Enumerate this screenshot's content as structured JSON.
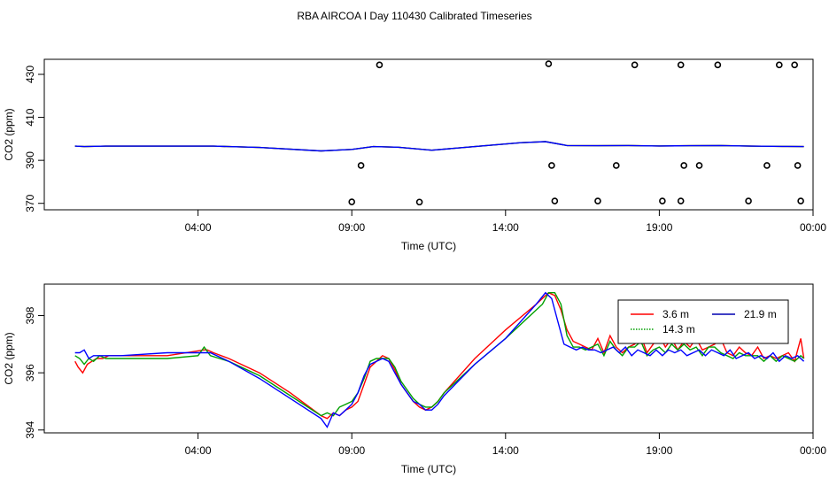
{
  "title": "RBA AIRCOA I  Day 110430  Calibrated Timeseries",
  "chart_data": [
    {
      "type": "scatter",
      "xlabel": "Time (UTC)",
      "ylabel": "CO2 (ppm)",
      "xlim": [
        -1.0,
        24.0
      ],
      "ylim": [
        367.0,
        437.0
      ],
      "xticks": [
        4,
        9,
        14,
        19,
        24
      ],
      "xticklabels": [
        "04:00",
        "09:00",
        "14:00",
        "19:00",
        "00:00"
      ],
      "yticks": [
        370,
        390,
        410,
        430
      ],
      "yticklabels": [
        "370",
        "390",
        "410",
        "430"
      ],
      "grid": false,
      "series": [
        {
          "color": "#ff0000",
          "style": "line",
          "x": [
            0.0,
            0.3,
            1.0,
            3.0,
            4.5,
            6.0,
            8.0,
            9.0,
            9.7,
            10.5,
            11.6,
            13.0,
            14.5,
            15.3,
            16.0,
            17.0,
            18.0,
            19.0,
            20.0,
            21.0,
            22.0,
            23.0,
            23.7
          ],
          "values": [
            396.6,
            396.4,
            396.6,
            396.6,
            396.6,
            396.0,
            394.4,
            395.1,
            396.4,
            396.1,
            394.7,
            396.4,
            398.2,
            398.7,
            396.9,
            396.8,
            396.9,
            396.7,
            396.8,
            396.9,
            396.6,
            396.5,
            396.4
          ]
        },
        {
          "color": "#00c000",
          "style": "line",
          "x": [
            0.0,
            0.3,
            1.0,
            3.0,
            4.5,
            6.0,
            8.0,
            9.0,
            9.7,
            10.5,
            11.6,
            13.0,
            14.5,
            15.3,
            16.0,
            17.0,
            18.0,
            19.0,
            20.0,
            21.0,
            22.0,
            23.0,
            23.7
          ],
          "values": [
            396.6,
            396.4,
            396.6,
            396.6,
            396.6,
            396.0,
            394.4,
            395.1,
            396.4,
            396.1,
            394.7,
            396.4,
            398.2,
            398.7,
            396.9,
            396.8,
            396.9,
            396.7,
            396.8,
            396.9,
            396.6,
            396.5,
            396.4
          ]
        },
        {
          "color": "#0000ff",
          "style": "line",
          "x": [
            0.0,
            0.3,
            1.0,
            3.0,
            4.5,
            6.0,
            8.0,
            9.0,
            9.7,
            10.5,
            11.6,
            13.0,
            14.5,
            15.3,
            16.0,
            17.0,
            18.0,
            19.0,
            20.0,
            21.0,
            22.0,
            23.0,
            23.7
          ],
          "values": [
            396.6,
            396.4,
            396.6,
            396.6,
            396.6,
            396.0,
            394.4,
            395.1,
            396.4,
            396.1,
            394.7,
            396.4,
            398.2,
            398.7,
            396.9,
            396.8,
            396.9,
            396.7,
            396.8,
            396.9,
            396.6,
            396.5,
            396.4
          ]
        },
        {
          "color": "#000000",
          "style": "points",
          "x": [
            9.0,
            11.2,
            9.3,
            9.9,
            15.4,
            15.5,
            15.6,
            17.0,
            17.6,
            18.2,
            19.1,
            19.7,
            19.7,
            19.8,
            20.3,
            20.9,
            21.9,
            22.5,
            22.9,
            23.4,
            23.5,
            23.6
          ],
          "values": [
            370.7,
            370.6,
            387.6,
            434.4,
            434.9,
            387.6,
            371.1,
            371.1,
            387.6,
            434.4,
            371.1,
            371.1,
            434.4,
            387.6,
            387.6,
            434.4,
            371.1,
            387.6,
            434.4,
            434.4,
            387.6,
            371.1
          ]
        }
      ]
    },
    {
      "type": "line",
      "xlabel": "Time (UTC)",
      "ylabel": "CO2 (ppm)",
      "xlim": [
        -1.0,
        24.0
      ],
      "ylim": [
        393.9,
        399.1
      ],
      "xticks": [
        4,
        9,
        14,
        19,
        24
      ],
      "xticklabels": [
        "04:00",
        "09:00",
        "14:00",
        "19:00",
        "00:00"
      ],
      "yticks": [
        394,
        396,
        398
      ],
      "yticklabels": [
        "394",
        "396",
        "398"
      ],
      "grid": false,
      "legend": {
        "position": "top-right",
        "entries": [
          {
            "label": "3.6 m",
            "color": "#ff0000",
            "dash": "solid"
          },
          {
            "label": "21.9 m",
            "color": "#0000b0",
            "dash": "solid"
          },
          {
            "label": "14.3 m",
            "color": "#00a000",
            "dash": "dotted"
          }
        ]
      },
      "series": [
        {
          "name": "3.6 m",
          "color": "#ff0000",
          "x": [
            0.0,
            0.1,
            0.25,
            0.4,
            0.55,
            0.7,
            0.9,
            1.1,
            1.3,
            1.5,
            3.0,
            4.2,
            4.3,
            4.5,
            5.0,
            6.0,
            7.0,
            8.0,
            8.2,
            8.4,
            8.6,
            8.8,
            9.0,
            9.2,
            9.4,
            9.6,
            9.8,
            10.0,
            10.2,
            10.4,
            10.6,
            10.8,
            11.0,
            11.2,
            11.4,
            11.6,
            11.8,
            12.0,
            13.0,
            14.0,
            15.0,
            15.4,
            15.6,
            15.8,
            16.0,
            16.2,
            16.4,
            16.6,
            16.8,
            17.0,
            17.2,
            17.4,
            17.6,
            17.8,
            18.0,
            18.2,
            18.4,
            18.6,
            18.8,
            19.0,
            19.2,
            19.4,
            19.6,
            19.8,
            20.0,
            20.2,
            20.4,
            20.6,
            20.8,
            21.0,
            21.2,
            21.4,
            21.6,
            21.8,
            22.0,
            22.2,
            22.4,
            22.6,
            22.8,
            23.0,
            23.2,
            23.4,
            23.6,
            23.7
          ],
          "values": [
            396.4,
            396.2,
            396.0,
            396.3,
            396.4,
            396.5,
            396.5,
            396.6,
            396.6,
            396.6,
            396.6,
            396.8,
            396.8,
            396.7,
            396.5,
            396.0,
            395.3,
            394.5,
            394.4,
            394.6,
            394.5,
            394.7,
            394.8,
            395.0,
            395.6,
            396.2,
            396.4,
            396.6,
            396.5,
            396.1,
            395.6,
            395.3,
            395.0,
            394.8,
            394.7,
            394.8,
            395.0,
            395.3,
            396.5,
            397.5,
            398.4,
            398.8,
            398.7,
            398.2,
            397.5,
            397.1,
            397.0,
            396.9,
            396.8,
            397.2,
            396.7,
            397.3,
            396.9,
            396.7,
            396.9,
            397.0,
            397.3,
            396.7,
            397.0,
            397.3,
            396.9,
            397.2,
            396.8,
            397.1,
            396.9,
            397.2,
            396.8,
            396.9,
            397.0,
            397.2,
            396.7,
            396.6,
            396.9,
            396.7,
            396.6,
            396.9,
            396.5,
            396.6,
            396.5,
            396.6,
            396.7,
            396.4,
            397.2,
            396.5
          ]
        },
        {
          "name": "14.3 m",
          "color": "#00a000",
          "x": [
            0.0,
            0.15,
            0.3,
            0.45,
            0.6,
            0.8,
            1.0,
            1.5,
            2.0,
            3.0,
            4.0,
            4.2,
            4.4,
            5.0,
            6.0,
            7.0,
            8.0,
            8.2,
            8.4,
            8.6,
            8.8,
            9.0,
            9.2,
            9.4,
            9.6,
            9.8,
            10.0,
            10.2,
            10.4,
            10.6,
            10.8,
            11.0,
            11.2,
            11.4,
            11.6,
            11.8,
            12.0,
            13.0,
            14.0,
            14.8,
            15.2,
            15.4,
            15.6,
            15.8,
            16.0,
            16.2,
            16.4,
            16.6,
            16.8,
            17.0,
            17.2,
            17.4,
            17.6,
            17.8,
            18.0,
            18.2,
            18.4,
            18.6,
            18.8,
            19.0,
            19.2,
            19.4,
            19.6,
            19.8,
            20.0,
            20.2,
            20.4,
            20.6,
            20.8,
            21.0,
            21.2,
            21.4,
            21.6,
            21.8,
            22.0,
            22.2,
            22.4,
            22.6,
            22.8,
            23.0,
            23.2,
            23.4,
            23.6,
            23.7
          ],
          "values": [
            396.6,
            396.5,
            396.3,
            396.5,
            396.4,
            396.6,
            396.5,
            396.5,
            396.5,
            396.5,
            396.6,
            396.9,
            396.6,
            396.4,
            395.9,
            395.2,
            394.5,
            394.6,
            394.5,
            394.8,
            394.9,
            395.0,
            395.3,
            395.8,
            396.4,
            396.5,
            396.5,
            396.5,
            396.2,
            395.7,
            395.4,
            395.1,
            394.9,
            394.8,
            394.8,
            395.0,
            395.3,
            396.3,
            397.2,
            398.0,
            398.4,
            398.8,
            398.8,
            398.4,
            397.3,
            396.9,
            396.9,
            396.8,
            396.9,
            397.0,
            396.6,
            397.1,
            396.8,
            396.6,
            396.9,
            396.9,
            397.1,
            396.6,
            396.8,
            396.9,
            396.7,
            397.0,
            396.8,
            397.0,
            396.8,
            396.9,
            396.6,
            396.9,
            396.9,
            396.7,
            396.6,
            396.5,
            396.7,
            396.6,
            396.6,
            396.6,
            396.4,
            396.6,
            396.4,
            396.6,
            396.5,
            396.4,
            396.6,
            396.5
          ]
        },
        {
          "name": "21.9 m",
          "color": "#0000ff",
          "x": [
            0.0,
            0.15,
            0.3,
            0.45,
            0.6,
            0.8,
            1.0,
            1.5,
            3.0,
            4.2,
            4.4,
            5.0,
            6.0,
            7.0,
            8.0,
            8.2,
            8.4,
            8.6,
            8.8,
            9.0,
            9.2,
            9.4,
            9.6,
            9.8,
            10.0,
            10.2,
            10.4,
            10.6,
            10.8,
            11.0,
            11.2,
            11.4,
            11.6,
            11.8,
            12.0,
            13.0,
            14.0,
            15.0,
            15.3,
            15.5,
            15.7,
            15.9,
            16.1,
            16.3,
            16.5,
            16.7,
            16.9,
            17.1,
            17.3,
            17.5,
            17.7,
            17.9,
            18.1,
            18.3,
            18.5,
            18.7,
            18.9,
            19.1,
            19.3,
            19.5,
            19.7,
            19.9,
            20.1,
            20.3,
            20.5,
            20.7,
            20.9,
            21.1,
            21.3,
            21.5,
            21.7,
            21.9,
            22.1,
            22.3,
            22.5,
            22.7,
            22.9,
            23.1,
            23.3,
            23.5,
            23.7
          ],
          "values": [
            396.7,
            396.7,
            396.8,
            396.5,
            396.6,
            396.6,
            396.6,
            396.6,
            396.7,
            396.7,
            396.7,
            396.4,
            395.8,
            395.1,
            394.4,
            394.1,
            394.6,
            394.5,
            394.7,
            394.9,
            395.3,
            395.9,
            396.3,
            396.4,
            396.5,
            396.4,
            396.0,
            395.6,
            395.3,
            395.0,
            394.9,
            394.7,
            394.7,
            394.9,
            395.2,
            396.3,
            397.2,
            398.4,
            398.8,
            398.6,
            397.8,
            397.0,
            396.9,
            396.8,
            396.9,
            396.8,
            396.8,
            396.7,
            396.8,
            396.9,
            396.7,
            396.9,
            396.6,
            396.8,
            396.7,
            396.6,
            396.8,
            396.6,
            396.8,
            396.7,
            396.8,
            396.6,
            396.7,
            396.8,
            396.6,
            396.8,
            396.7,
            396.6,
            396.8,
            396.5,
            396.6,
            396.7,
            396.5,
            396.6,
            396.5,
            396.7,
            396.4,
            396.6,
            396.5,
            396.6,
            396.4
          ]
        }
      ]
    }
  ]
}
